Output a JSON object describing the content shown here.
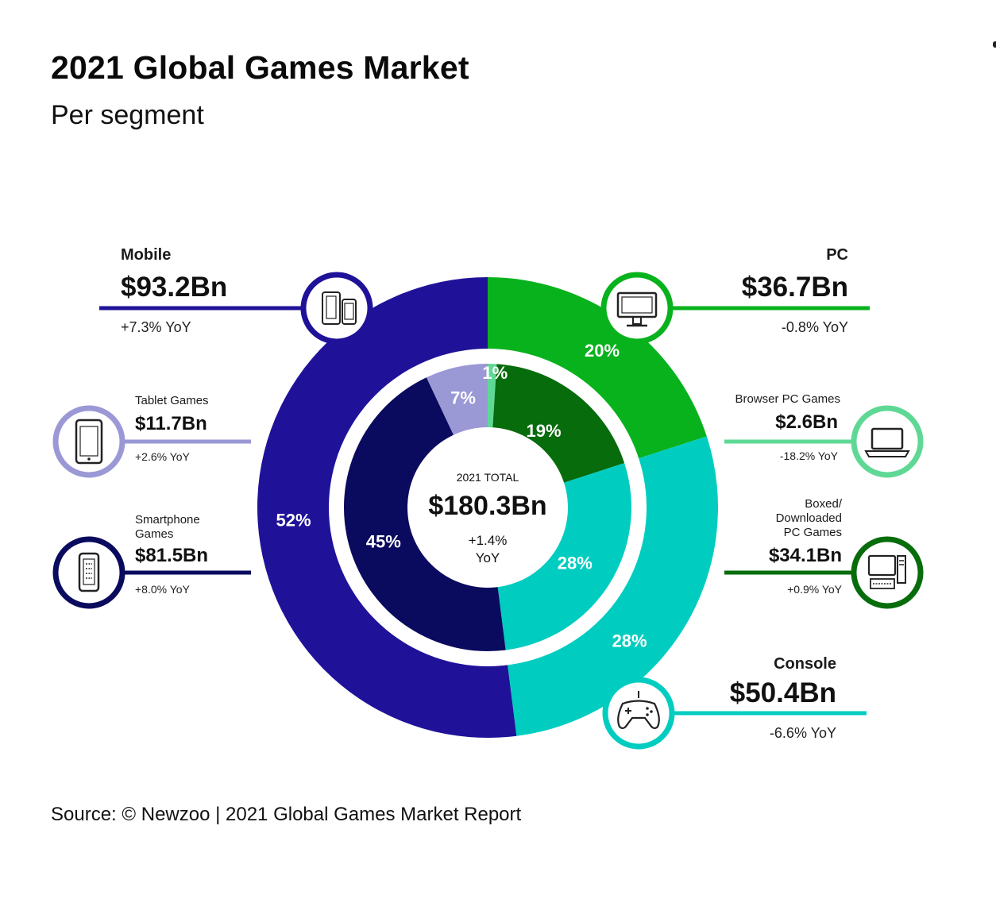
{
  "title": "2021 Global Games Market",
  "subtitle": "Per segment",
  "source": "Source: © Newzoo | 2021 Global Games Market Report",
  "center": {
    "label": "2021 TOTAL",
    "value": "$180.3Bn",
    "yoy_line1": "+1.4%",
    "yoy_line2": "YoY"
  },
  "callouts": {
    "mobile": {
      "name": "Mobile",
      "value": "$93.2Bn",
      "yoy": "+7.3% YoY"
    },
    "pc": {
      "name": "PC",
      "value": "$36.7Bn",
      "yoy": "-0.8% YoY"
    },
    "console": {
      "name": "Console",
      "value": "$50.4Bn",
      "yoy": "-6.6% YoY"
    },
    "tablet": {
      "name": "Tablet Games",
      "value": "$11.7Bn",
      "yoy": "+2.6% YoY"
    },
    "smartphone": {
      "name_line1": "Smartphone",
      "name_line2": "Games",
      "value": "$81.5Bn",
      "yoy": "+8.0% YoY"
    },
    "browser": {
      "name": "Browser PC Games",
      "value": "$2.6Bn",
      "yoy": "-18.2% YoY"
    },
    "boxed": {
      "name_line1": "Boxed/",
      "name_line2": "Downloaded",
      "name_line3": "PC Games",
      "value": "$34.1Bn",
      "yoy": "+0.9% YoY"
    }
  },
  "icons": {
    "mobile": "mobile-devices-icon",
    "pc": "monitor-icon",
    "console": "gamepad-icon",
    "tablet": "tablet-icon",
    "smartphone": "smartphone-icon",
    "browser": "laptop-icon",
    "boxed": "desktop-computer-icon"
  },
  "colors": {
    "mobile": "#1f1299",
    "pc": "#08b21d",
    "console": "#00cdc0",
    "tablet": "#9b98d6",
    "smartphone": "#0a0a5e",
    "browser": "#5fd895",
    "boxed": "#076c0c",
    "inner_console": "#00cdc0"
  },
  "chart_data": [
    {
      "type": "pie",
      "ring": "outer",
      "categories": [
        "PC",
        "Console",
        "Mobile"
      ],
      "values": [
        20,
        28,
        52
      ],
      "labels": [
        "20%",
        "28%",
        "52%"
      ]
    },
    {
      "type": "pie",
      "ring": "inner",
      "categories": [
        "Browser PC Games",
        "Boxed/Downloaded PC Games",
        "Console",
        "Smartphone Games",
        "Tablet Games"
      ],
      "values": [
        1,
        19,
        28,
        45,
        7
      ],
      "labels": [
        "1%",
        "19%",
        "28%",
        "45%",
        "7%"
      ]
    }
  ]
}
